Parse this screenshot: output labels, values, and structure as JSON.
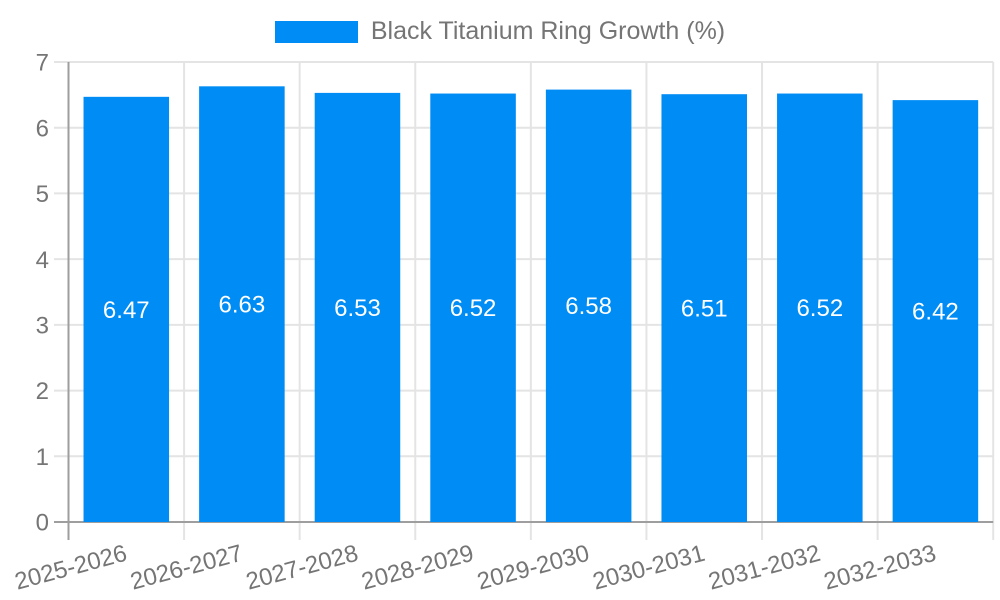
{
  "legend": {
    "label": "Black Titanium Ring Growth (%)"
  },
  "chart_data": {
    "type": "bar",
    "title": "Black Titanium Ring Growth (%)",
    "categories": [
      "2025-2026",
      "2026-2027",
      "2027-2028",
      "2028-2029",
      "2029-2030",
      "2030-2031",
      "2031-2032",
      "2032-2033"
    ],
    "values": [
      6.47,
      6.63,
      6.53,
      6.52,
      6.58,
      6.51,
      6.52,
      6.42
    ],
    "value_labels": [
      "6.47",
      "6.63",
      "6.53",
      "6.52",
      "6.58",
      "6.51",
      "6.52",
      "6.42"
    ],
    "series_name": "Black Titanium Ring Growth (%)",
    "xlabel": "",
    "ylabel": "",
    "ylim": [
      0,
      7
    ],
    "yticks": [
      0,
      1,
      2,
      3,
      4,
      5,
      6,
      7
    ],
    "grid": true,
    "legend_position": "top",
    "colors": {
      "bar": "#008CF5",
      "value_label": "#FFFFFF",
      "tick_label": "#757575",
      "legend_text": "#757575",
      "gridline": "#E4E4E4",
      "axis_line": "#9E9E9E",
      "background": "#FFFFFF"
    }
  }
}
